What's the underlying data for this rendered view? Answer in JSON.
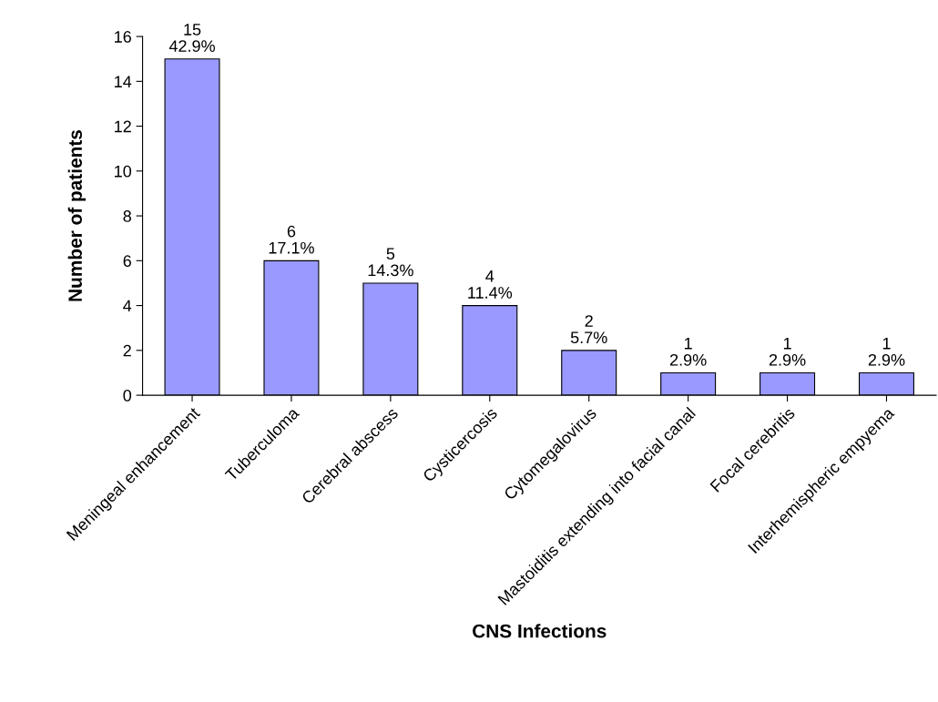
{
  "chart_data": {
    "type": "bar",
    "xlabel": "CNS Infections",
    "ylabel": "Number of patients",
    "categories": [
      "Meningeal enhancement",
      "Tuberculoma",
      "Cerebral abscess",
      "Cysticercosis",
      "Cytomegalovirus",
      "Mastoiditis extending into facial canal",
      "Focal cerebritis",
      "Interhemispheric empyema"
    ],
    "values": [
      15,
      6,
      5,
      4,
      2,
      1,
      1,
      1
    ],
    "value_labels": [
      "15\n42.9%",
      "6\n17.1%",
      "5\n14.3%",
      "4\n11.4%",
      "2\n5.7%",
      "1\n2.9%",
      "1\n2.9%",
      "1\n2.9%"
    ],
    "color": "#9999ff",
    "ylim": [
      0,
      16
    ],
    "yticks": [
      0,
      2,
      4,
      6,
      8,
      10,
      12,
      14,
      16
    ],
    "grid": false,
    "legend": false
  }
}
